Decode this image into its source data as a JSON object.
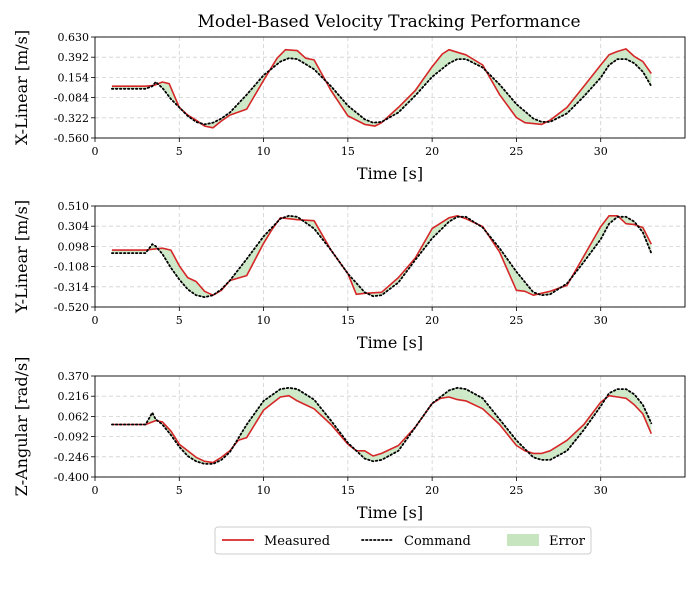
{
  "figure": {
    "title": "Model-Based Velocity Tracking Performance"
  },
  "legend": {
    "placement": "bottom-center",
    "items": [
      {
        "label": "Measured",
        "style": "solid",
        "color": "#d62728"
      },
      {
        "label": "Command",
        "style": "dotted",
        "color": "#000000"
      },
      {
        "label": "Error",
        "style": "fill",
        "color": "#c7e6c0"
      }
    ]
  },
  "chart_data": [
    {
      "type": "line",
      "ylabel": "X-Linear [m/s]",
      "xlabel": "Time [s]",
      "xlim": [
        0,
        35
      ],
      "ylim": [
        -0.56,
        0.63
      ],
      "xticks": [
        0,
        5,
        10,
        15,
        20,
        25,
        30
      ],
      "yticks": [
        -0.56,
        -0.322,
        -0.084,
        0.154,
        0.392,
        0.63
      ],
      "ytick_labels": [
        "-0.560",
        "-0.322",
        "-0.084",
        "0.154",
        "0.392",
        "0.630"
      ],
      "grid": true,
      "series": [
        {
          "name": "Command",
          "color": "#000000",
          "x": [
            1.0,
            3.0,
            3.4,
            3.6,
            4.0,
            4.5,
            5.0,
            5.5,
            6.0,
            6.5,
            7.0,
            7.5,
            8.0,
            9.0,
            10.0,
            11.0,
            11.5,
            12.0,
            13.0,
            14.0,
            15.0,
            16.0,
            16.5,
            17.0,
            18.0,
            19.0,
            20.0,
            21.0,
            21.5,
            22.0,
            23.0,
            24.0,
            25.0,
            26.0,
            26.5,
            27.0,
            28.0,
            29.0,
            30.0,
            30.5,
            31.0,
            31.5,
            32.0,
            32.5,
            33.0
          ],
          "y": [
            0.02,
            0.02,
            0.05,
            0.1,
            0.03,
            -0.1,
            -0.2,
            -0.3,
            -0.37,
            -0.4,
            -0.38,
            -0.33,
            -0.26,
            -0.05,
            0.18,
            0.34,
            0.38,
            0.37,
            0.25,
            0.05,
            -0.18,
            -0.34,
            -0.38,
            -0.37,
            -0.26,
            -0.06,
            0.16,
            0.32,
            0.37,
            0.37,
            0.27,
            0.07,
            -0.16,
            -0.33,
            -0.37,
            -0.37,
            -0.27,
            -0.07,
            0.15,
            0.3,
            0.37,
            0.37,
            0.32,
            0.22,
            0.05
          ]
        },
        {
          "name": "Measured",
          "color": "#d62728",
          "x": [
            1.0,
            3.0,
            3.5,
            4.0,
            4.4,
            5.0,
            5.5,
            6.0,
            6.5,
            7.0,
            7.5,
            8.0,
            9.0,
            10.0,
            10.8,
            11.3,
            12.0,
            12.5,
            13.0,
            14.0,
            15.0,
            16.0,
            16.6,
            17.0,
            18.0,
            19.0,
            20.0,
            20.6,
            21.0,
            21.5,
            22.0,
            23.0,
            24.0,
            25.0,
            25.5,
            26.0,
            26.5,
            27.0,
            28.0,
            29.0,
            30.0,
            30.5,
            31.0,
            31.5,
            32.0,
            32.5,
            33.0
          ],
          "y": [
            0.05,
            0.05,
            0.06,
            0.1,
            0.08,
            -0.2,
            -0.29,
            -0.35,
            -0.42,
            -0.44,
            -0.36,
            -0.29,
            -0.22,
            0.12,
            0.38,
            0.48,
            0.47,
            0.38,
            0.36,
            0.0,
            -0.3,
            -0.4,
            -0.42,
            -0.38,
            -0.2,
            0.0,
            0.28,
            0.43,
            0.48,
            0.45,
            0.42,
            0.3,
            -0.05,
            -0.32,
            -0.38,
            -0.39,
            -0.4,
            -0.35,
            -0.2,
            0.05,
            0.3,
            0.42,
            0.46,
            0.49,
            0.4,
            0.34,
            0.2
          ]
        }
      ]
    },
    {
      "type": "line",
      "ylabel": "Y-Linear [m/s]",
      "xlabel": "Time [s]",
      "xlim": [
        0,
        35
      ],
      "ylim": [
        -0.52,
        0.51
      ],
      "xticks": [
        0,
        5,
        10,
        15,
        20,
        25,
        30
      ],
      "yticks": [
        -0.52,
        -0.314,
        -0.108,
        0.098,
        0.304,
        0.51
      ],
      "ytick_labels": [
        "-0.520",
        "-0.314",
        "-0.108",
        "0.098",
        "0.304",
        "0.510"
      ],
      "grid": true,
      "series": [
        {
          "name": "Command",
          "color": "#000000",
          "x": [
            1.0,
            3.0,
            3.4,
            3.6,
            4.0,
            4.5,
            5.0,
            5.5,
            6.0,
            6.5,
            7.0,
            7.5,
            8.0,
            9.0,
            10.0,
            11.0,
            11.5,
            12.0,
            13.0,
            14.0,
            15.0,
            16.0,
            16.5,
            17.0,
            18.0,
            19.0,
            20.0,
            21.0,
            21.5,
            22.0,
            23.0,
            24.0,
            25.0,
            26.0,
            26.5,
            27.0,
            28.0,
            29.0,
            30.0,
            30.5,
            31.0,
            31.5,
            32.0,
            32.5,
            33.0
          ],
          "y": [
            0.03,
            0.03,
            0.12,
            0.1,
            0.02,
            -0.12,
            -0.24,
            -0.34,
            -0.4,
            -0.42,
            -0.4,
            -0.34,
            -0.25,
            -0.03,
            0.2,
            0.38,
            0.41,
            0.4,
            0.28,
            0.06,
            -0.18,
            -0.37,
            -0.41,
            -0.4,
            -0.27,
            -0.04,
            0.18,
            0.35,
            0.4,
            0.4,
            0.29,
            0.08,
            -0.16,
            -0.37,
            -0.4,
            -0.39,
            -0.28,
            -0.06,
            0.17,
            0.33,
            0.4,
            0.4,
            0.35,
            0.24,
            0.03
          ]
        },
        {
          "name": "Measured",
          "color": "#d62728",
          "x": [
            1.0,
            3.0,
            3.5,
            4.0,
            4.5,
            5.0,
            5.5,
            6.0,
            6.5,
            7.0,
            7.5,
            8.0,
            9.0,
            10.0,
            10.5,
            11.0,
            11.5,
            12.0,
            13.0,
            14.0,
            15.0,
            15.5,
            16.0,
            17.0,
            18.0,
            19.0,
            20.0,
            21.0,
            21.5,
            22.0,
            23.0,
            24.0,
            25.0,
            25.5,
            26.0,
            27.0,
            28.0,
            29.0,
            30.0,
            30.5,
            31.0,
            31.5,
            32.0,
            32.5,
            33.0
          ],
          "y": [
            0.06,
            0.06,
            0.07,
            0.08,
            0.06,
            -0.1,
            -0.22,
            -0.26,
            -0.36,
            -0.4,
            -0.35,
            -0.25,
            -0.2,
            0.13,
            0.27,
            0.39,
            0.38,
            0.37,
            0.36,
            0.06,
            -0.18,
            -0.39,
            -0.38,
            -0.37,
            -0.22,
            -0.02,
            0.28,
            0.39,
            0.41,
            0.38,
            0.3,
            0.04,
            -0.35,
            -0.36,
            -0.4,
            -0.36,
            -0.3,
            0.0,
            0.3,
            0.41,
            0.41,
            0.33,
            0.32,
            0.29,
            0.12
          ]
        }
      ]
    },
    {
      "type": "line",
      "ylabel": "Z-Angular [rad/s]",
      "xlabel": "Time [s]",
      "xlim": [
        0,
        35
      ],
      "ylim": [
        -0.4,
        0.37
      ],
      "xticks": [
        0,
        5,
        10,
        15,
        20,
        25,
        30
      ],
      "yticks": [
        -0.4,
        -0.246,
        -0.092,
        0.062,
        0.216,
        0.37
      ],
      "ytick_labels": [
        "-0.400",
        "-0.246",
        "-0.092",
        "0.062",
        "0.216",
        "0.370"
      ],
      "grid": true,
      "series": [
        {
          "name": "Command",
          "color": "#000000",
          "x": [
            1.0,
            3.0,
            3.4,
            3.6,
            4.0,
            4.5,
            5.0,
            5.5,
            6.0,
            6.5,
            7.0,
            7.5,
            8.0,
            9.0,
            10.0,
            11.0,
            11.5,
            12.0,
            13.0,
            14.0,
            15.0,
            16.0,
            16.5,
            17.0,
            18.0,
            19.0,
            20.0,
            21.0,
            21.5,
            22.0,
            23.0,
            24.0,
            25.0,
            26.0,
            26.5,
            27.0,
            28.0,
            29.0,
            30.0,
            30.5,
            31.0,
            31.5,
            32.0,
            32.5,
            33.0
          ],
          "y": [
            0.0,
            0.0,
            0.09,
            0.04,
            0.0,
            -0.08,
            -0.17,
            -0.24,
            -0.28,
            -0.3,
            -0.3,
            -0.27,
            -0.21,
            0.0,
            0.18,
            0.27,
            0.28,
            0.27,
            0.19,
            0.03,
            -0.14,
            -0.26,
            -0.28,
            -0.27,
            -0.2,
            -0.02,
            0.16,
            0.26,
            0.28,
            0.27,
            0.2,
            0.04,
            -0.12,
            -0.25,
            -0.27,
            -0.27,
            -0.2,
            -0.04,
            0.14,
            0.24,
            0.27,
            0.27,
            0.23,
            0.15,
            0.01
          ]
        },
        {
          "name": "Measured",
          "color": "#d62728",
          "x": [
            1.0,
            3.0,
            3.6,
            4.0,
            4.5,
            5.0,
            5.5,
            6.0,
            6.5,
            7.0,
            7.5,
            8.0,
            8.5,
            9.0,
            10.0,
            10.5,
            11.0,
            11.5,
            12.0,
            12.5,
            13.0,
            14.0,
            15.0,
            15.5,
            16.0,
            16.5,
            17.0,
            18.0,
            19.0,
            20.0,
            20.5,
            21.0,
            21.5,
            22.0,
            23.0,
            24.0,
            25.0,
            25.5,
            26.0,
            26.5,
            27.0,
            28.0,
            29.0,
            30.0,
            30.5,
            31.0,
            31.5,
            32.0,
            32.5,
            33.0
          ],
          "y": [
            0.0,
            0.0,
            0.03,
            0.02,
            -0.05,
            -0.15,
            -0.2,
            -0.25,
            -0.28,
            -0.29,
            -0.25,
            -0.2,
            -0.12,
            -0.1,
            0.11,
            0.16,
            0.21,
            0.22,
            0.18,
            0.15,
            0.12,
            0.0,
            -0.15,
            -0.2,
            -0.2,
            -0.24,
            -0.22,
            -0.16,
            -0.02,
            0.16,
            0.2,
            0.21,
            0.19,
            0.18,
            0.12,
            0.0,
            -0.16,
            -0.2,
            -0.22,
            -0.22,
            -0.2,
            -0.12,
            0.0,
            0.17,
            0.22,
            0.21,
            0.2,
            0.15,
            0.08,
            -0.07
          ]
        }
      ]
    }
  ]
}
